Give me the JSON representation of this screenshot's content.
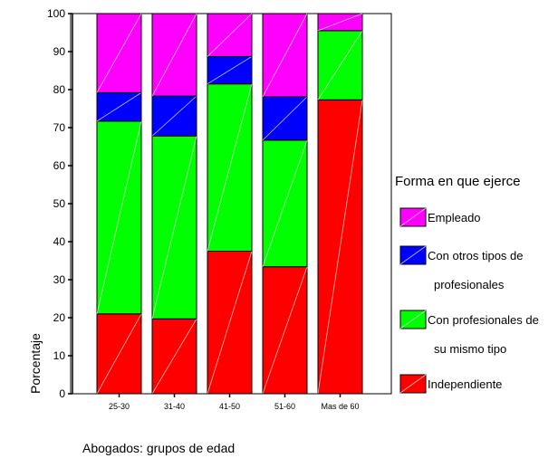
{
  "chart_data": {
    "type": "bar",
    "stacked": true,
    "categories": [
      "25-30",
      "31-40",
      "41-50",
      "51-60",
      "Mas de 60"
    ],
    "series": [
      {
        "name": "Independiente",
        "color": "#ff0000",
        "values": [
          21.0,
          19.7,
          37.5,
          33.4,
          77.3
        ]
      },
      {
        "name": "Con profesionales de su mismo tipo",
        "color": "#00ff00",
        "values": [
          50.7,
          48.1,
          44.0,
          33.3,
          18.2
        ]
      },
      {
        "name": "Con otros tipos de profesionales",
        "color": "#0000ff",
        "values": [
          7.5,
          10.5,
          7.2,
          11.4,
          0.0
        ]
      },
      {
        "name": "Empleado",
        "color": "#ff00ff",
        "values": [
          20.8,
          21.7,
          11.3,
          21.9,
          4.5
        ]
      }
    ],
    "ylim": [
      0,
      100
    ],
    "yticks": [
      0,
      10,
      20,
      30,
      40,
      50,
      60,
      70,
      80,
      90,
      100
    ],
    "xlabel": "Abogados: grupos de edad",
    "ylabel": "Porcentaje",
    "legend": {
      "title": "Forma en que ejerce",
      "placement": "right",
      "entries": [
        {
          "lines": [
            "Empleado"
          ],
          "color": "#ff00ff"
        },
        {
          "lines": [
            "Con otros tipos de",
            "profesionales"
          ],
          "color": "#0000ff"
        },
        {
          "lines": [
            "Con profesionales de",
            "su mismo tipo"
          ],
          "color": "#00ff00"
        },
        {
          "lines": [
            "Independiente"
          ],
          "color": "#ff0000"
        }
      ]
    }
  }
}
